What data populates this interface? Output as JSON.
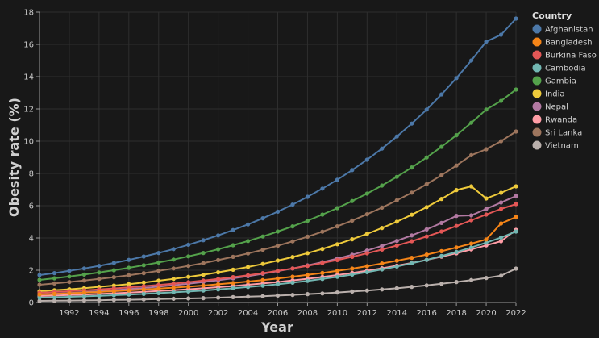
{
  "chart_data": {
    "type": "line",
    "xlabel": "Year",
    "ylabel": "Obesity rate (%)",
    "xlim": [
      1990,
      2022
    ],
    "ylim": [
      0,
      18
    ],
    "xticks": [
      1992,
      1994,
      1996,
      1998,
      2000,
      2002,
      2004,
      2006,
      2008,
      2010,
      2012,
      2014,
      2016,
      2018,
      2020,
      2022
    ],
    "yticks": [
      0,
      2,
      4,
      6,
      8,
      10,
      12,
      14,
      16,
      18
    ],
    "grid": true,
    "legend_title": "Country",
    "legend_position": "right",
    "x": [
      1990,
      1991,
      1992,
      1993,
      1994,
      1995,
      1996,
      1997,
      1998,
      1999,
      2000,
      2001,
      2002,
      2003,
      2004,
      2005,
      2006,
      2007,
      2008,
      2009,
      2010,
      2011,
      2012,
      2013,
      2014,
      2015,
      2016,
      2017,
      2018,
      2019,
      2020,
      2021,
      2022
    ],
    "series": [
      {
        "name": "Afghanistan",
        "color": "#4c78a8",
        "values": [
          1.7,
          1.82,
          1.96,
          2.11,
          2.27,
          2.45,
          2.64,
          2.85,
          3.07,
          3.31,
          3.58,
          3.86,
          4.16,
          4.49,
          4.84,
          5.22,
          5.63,
          6.07,
          6.55,
          7.06,
          7.61,
          8.21,
          8.85,
          9.54,
          10.29,
          11.09,
          11.96,
          12.9,
          13.91,
          15.0,
          16.17,
          16.6,
          17.6
        ]
      },
      {
        "name": "Bangladesh",
        "color": "#f58518",
        "values": [
          0.5,
          0.53,
          0.57,
          0.61,
          0.65,
          0.7,
          0.75,
          0.8,
          0.86,
          0.92,
          0.98,
          1.05,
          1.13,
          1.21,
          1.3,
          1.39,
          1.49,
          1.6,
          1.71,
          1.83,
          1.96,
          2.1,
          2.25,
          2.42,
          2.59,
          2.77,
          2.97,
          3.18,
          3.41,
          3.65,
          3.91,
          4.9,
          5.3
        ]
      },
      {
        "name": "Burkina Faso",
        "color": "#e45756",
        "values": [
          0.6,
          0.65,
          0.7,
          0.75,
          0.81,
          0.87,
          0.94,
          1.01,
          1.09,
          1.17,
          1.26,
          1.36,
          1.46,
          1.57,
          1.69,
          1.82,
          1.96,
          2.11,
          2.27,
          2.45,
          2.63,
          2.83,
          3.05,
          3.28,
          3.53,
          3.8,
          4.09,
          4.4,
          4.74,
          5.1,
          5.45,
          5.8,
          6.1
        ]
      },
      {
        "name": "Cambodia",
        "color": "#72b7b2",
        "values": [
          0.3,
          0.32,
          0.35,
          0.38,
          0.41,
          0.45,
          0.49,
          0.53,
          0.58,
          0.63,
          0.68,
          0.74,
          0.81,
          0.88,
          0.96,
          1.04,
          1.13,
          1.23,
          1.34,
          1.46,
          1.59,
          1.73,
          1.88,
          2.05,
          2.23,
          2.43,
          2.64,
          2.88,
          3.13,
          3.41,
          3.71,
          4.03,
          4.4
        ]
      },
      {
        "name": "Gambia",
        "color": "#54a24b",
        "values": [
          1.4,
          1.5,
          1.61,
          1.73,
          1.86,
          2.0,
          2.15,
          2.31,
          2.48,
          2.66,
          2.86,
          3.07,
          3.3,
          3.55,
          3.81,
          4.09,
          4.4,
          4.72,
          5.07,
          5.45,
          5.85,
          6.29,
          6.75,
          7.25,
          7.79,
          8.37,
          8.99,
          9.65,
          10.37,
          11.14,
          11.96,
          12.5,
          13.2
        ]
      },
      {
        "name": "India",
        "color": "#eeca3b",
        "values": [
          0.7,
          0.76,
          0.82,
          0.89,
          0.97,
          1.05,
          1.14,
          1.24,
          1.35,
          1.46,
          1.59,
          1.72,
          1.87,
          2.03,
          2.2,
          2.39,
          2.6,
          2.82,
          3.06,
          3.32,
          3.61,
          3.92,
          4.25,
          4.62,
          5.01,
          5.44,
          5.91,
          6.42,
          6.97,
          7.2,
          6.45,
          6.8,
          7.2
        ]
      },
      {
        "name": "Nepal",
        "color": "#b279a2",
        "values": [
          0.5,
          0.54,
          0.59,
          0.64,
          0.7,
          0.76,
          0.83,
          0.9,
          0.98,
          1.07,
          1.16,
          1.27,
          1.38,
          1.5,
          1.63,
          1.78,
          1.94,
          2.11,
          2.3,
          2.5,
          2.72,
          2.96,
          3.22,
          3.51,
          3.82,
          4.16,
          4.53,
          4.93,
          5.37,
          5.4,
          5.8,
          6.2,
          6.6
        ]
      },
      {
        "name": "Rwanda",
        "color": "#ff9da6",
        "values": [
          0.4,
          0.43,
          0.46,
          0.49,
          0.53,
          0.57,
          0.61,
          0.66,
          0.71,
          0.76,
          0.82,
          0.88,
          0.95,
          1.02,
          1.1,
          1.18,
          1.27,
          1.37,
          1.47,
          1.58,
          1.7,
          1.83,
          1.97,
          2.12,
          2.28,
          2.45,
          2.64,
          2.84,
          3.05,
          3.29,
          3.54,
          3.8,
          4.5
        ]
      },
      {
        "name": "Sri Lanka",
        "color": "#9d755d",
        "values": [
          1.1,
          1.18,
          1.27,
          1.36,
          1.46,
          1.57,
          1.69,
          1.82,
          1.96,
          2.11,
          2.27,
          2.44,
          2.63,
          2.83,
          3.04,
          3.27,
          3.52,
          3.79,
          4.08,
          4.39,
          4.72,
          5.08,
          5.47,
          5.88,
          6.33,
          6.81,
          7.33,
          7.89,
          8.49,
          9.13,
          9.5,
          10.0,
          10.6
        ]
      },
      {
        "name": "Vietnam",
        "color": "#bab0ac",
        "values": [
          0.1,
          0.11,
          0.12,
          0.13,
          0.14,
          0.16,
          0.17,
          0.19,
          0.21,
          0.23,
          0.25,
          0.27,
          0.3,
          0.33,
          0.36,
          0.39,
          0.43,
          0.47,
          0.52,
          0.56,
          0.62,
          0.68,
          0.74,
          0.81,
          0.88,
          0.97,
          1.06,
          1.16,
          1.27,
          1.39,
          1.52,
          1.66,
          2.1
        ]
      }
    ]
  }
}
